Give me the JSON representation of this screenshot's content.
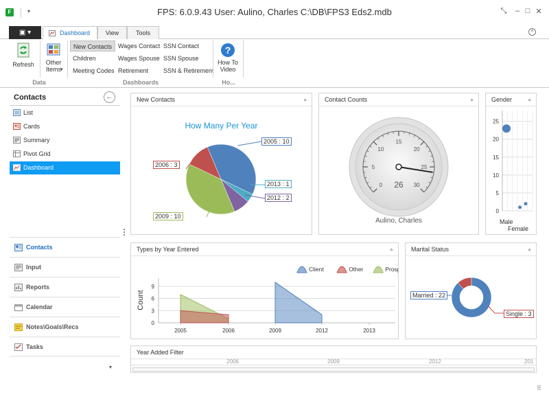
{
  "window": {
    "title": "FPS: 6.0.9.43   User: Aulino, Charles    C:\\DB\\FPS3 Eds2.mdb",
    "app_icon": "F",
    "controls": [
      "⤡",
      "–",
      "□",
      "✕"
    ]
  },
  "ribbon": {
    "tabs": [
      {
        "label": "Dashboard",
        "active": true
      },
      {
        "label": "View",
        "active": false
      },
      {
        "label": "Tools",
        "active": false
      }
    ],
    "buttons": {
      "refresh": "Refresh",
      "other_items_1": "Other",
      "other_items_2": "Items",
      "how_to_1": "How To",
      "how_to_2": "Video"
    },
    "dashboards": {
      "col1": [
        "New Contacts",
        "Children",
        "Meeting Codes"
      ],
      "col2": [
        "Wages Contact",
        "Wages Spouse",
        "Retirement"
      ],
      "col3": [
        "SSN Contact",
        "SSN Spouse",
        "SSN & Retirement"
      ]
    },
    "groups": {
      "data": "Data",
      "dashboards": "Dashboards",
      "ho": "Ho..."
    }
  },
  "nav": {
    "title": "Contacts",
    "views": [
      {
        "label": "List",
        "icon": "list-icon"
      },
      {
        "label": "Cards",
        "icon": "cards-icon"
      },
      {
        "label": "Summary",
        "icon": "summary-icon"
      },
      {
        "label": "Pivot Grid",
        "icon": "pivot-grid-icon"
      },
      {
        "label": "Dashboard",
        "icon": "dashboard-icon",
        "selected": true
      }
    ],
    "modules": [
      {
        "label": "Contacts",
        "selected": true
      },
      {
        "label": "Input"
      },
      {
        "label": "Reports"
      },
      {
        "label": "Calendar"
      },
      {
        "label": "Notes\\Goals\\Recs"
      },
      {
        "label": "Tasks"
      }
    ]
  },
  "panels": {
    "new_contacts": "New Contacts",
    "contact_counts": "Contact Counts",
    "gender": "Gender",
    "types_by_year": "Types by Year Entered",
    "marital": "Marital Status",
    "year_filter": "Year Added Filter"
  },
  "colors": {
    "accent": "#0f9cf2",
    "client": "#4f81bd",
    "other": "#c0504d",
    "prospect": "#9bbb59",
    "purple": "#8064a2",
    "teal": "#4bacc6"
  },
  "chart_data": [
    {
      "type": "pie",
      "title": "How Many Per Year",
      "slices": [
        {
          "label": "2005 : 10",
          "category": "2005",
          "value": 10,
          "color": "#4f81bd"
        },
        {
          "label": "2013 : 1",
          "category": "2013",
          "value": 1,
          "color": "#4bacc6"
        },
        {
          "label": "2012 : 2",
          "category": "2012",
          "value": 2,
          "color": "#8064a2"
        },
        {
          "label": "2009 : 10",
          "category": "2009",
          "value": 10,
          "color": "#9bbb59"
        },
        {
          "label": "2006 : 3",
          "category": "2006",
          "value": 3,
          "color": "#c0504d"
        }
      ]
    },
    {
      "type": "gauge",
      "value": 26,
      "min": 0,
      "max": 30,
      "ticks": [
        "0",
        "5",
        "10",
        "15",
        "20",
        "25",
        "30"
      ],
      "label": "Aulino, Charles"
    },
    {
      "type": "scatter",
      "categories": [
        "Male",
        "Female"
      ],
      "yticks": [
        "0",
        "5",
        "10",
        "15",
        "20",
        "25"
      ],
      "ylim": [
        0,
        28
      ],
      "points": [
        {
          "x": 0,
          "y": 23,
          "size": "large"
        },
        {
          "x": 0.7,
          "y": 1,
          "size": "small"
        },
        {
          "x": 1,
          "y": 2,
          "size": "small"
        }
      ]
    },
    {
      "type": "area",
      "ylabel": "Count",
      "legend": [
        "Client",
        "Other",
        "Prospect"
      ],
      "xticks": [
        "2005",
        "2006",
        "2009",
        "2012",
        "2013"
      ],
      "yticks": [
        "0",
        "3",
        "6",
        "9"
      ],
      "ylim": [
        0,
        11
      ],
      "series": [
        {
          "name": "Prospect",
          "color": "#9bbb59",
          "points": [
            [
              2005,
              7
            ],
            [
              2006,
              1
            ]
          ]
        },
        {
          "name": "Other",
          "color": "#c0504d",
          "points": [
            [
              2005,
              3
            ],
            [
              2006,
              2
            ]
          ]
        },
        {
          "name": "Client",
          "color": "#4f81bd",
          "points": [
            [
              2009,
              10
            ],
            [
              2012,
              2
            ]
          ]
        }
      ]
    },
    {
      "type": "donut",
      "slices": [
        {
          "label": "Married : 22",
          "value": 22,
          "color": "#4f81bd"
        },
        {
          "label": "Single : 3",
          "value": 3,
          "color": "#c0504d"
        }
      ]
    },
    {
      "type": "range",
      "ticks": [
        "2006",
        "2009",
        "2012",
        "201"
      ]
    }
  ]
}
